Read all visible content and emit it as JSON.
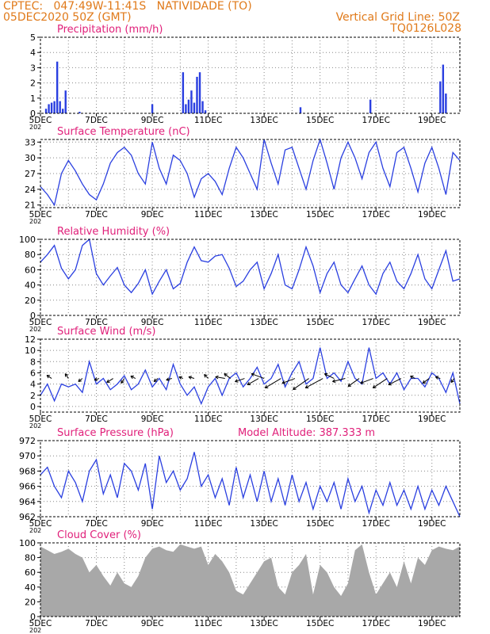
{
  "header": {
    "line1": "CPTEC:   047:49W-11:41S   NATIVIDADE (TO)",
    "line2": "05DEC2020 50Z (GMT)",
    "grid_note": "Vertical Grid Line: 50Z",
    "code": "TQ0126L028",
    "model_altitude": "Model Altitude: 387.333 m"
  },
  "colors": {
    "header": "#e07a1a",
    "title": "#e0207a",
    "line": "#2a3fe0",
    "bar": "#2a3fe0",
    "cloud": "#a8a8a8",
    "grid": "#888888"
  },
  "x_axis": {
    "start": "05DEC",
    "end": "20DEC",
    "ticks": [
      {
        "pos": 0,
        "label": "5DEC"
      },
      {
        "pos": 2,
        "label": "7DEC"
      },
      {
        "pos": 4,
        "label": "9DEC"
      },
      {
        "pos": 6,
        "label": "11DEC"
      },
      {
        "pos": 8,
        "label": "13DEC"
      },
      {
        "pos": 10,
        "label": "15DEC"
      },
      {
        "pos": 12,
        "label": "17DEC"
      },
      {
        "pos": 14,
        "label": "19DEC"
      }
    ],
    "partial_label": "202"
  },
  "chart_data": [
    {
      "id": "precip",
      "type": "bar",
      "title": "Precipitation (mm/h)",
      "ylim": [
        0,
        5
      ],
      "yticks": [
        0,
        1,
        2,
        3,
        4,
        5
      ],
      "x": [
        0.2,
        0.3,
        0.4,
        0.5,
        0.6,
        0.7,
        0.8,
        0.9,
        1.4,
        4.0,
        5.1,
        5.2,
        5.3,
        5.4,
        5.5,
        5.6,
        5.7,
        5.8,
        5.9,
        9.3,
        11.8,
        14.3,
        14.4,
        14.5
      ],
      "values": [
        0.3,
        0.6,
        0.7,
        0.8,
        3.4,
        0.8,
        0.3,
        1.5,
        0.1,
        0.6,
        2.7,
        0.6,
        0.9,
        1.5,
        0.7,
        2.4,
        2.7,
        0.8,
        0.2,
        0.4,
        0.9,
        2.1,
        3.2,
        1.3
      ]
    },
    {
      "id": "temp",
      "type": "line",
      "title": "Surface Temperature (nC)",
      "ylim": [
        20.5,
        33.5
      ],
      "yticks": [
        21,
        24,
        27,
        30,
        33
      ],
      "x": [
        0,
        0.25,
        0.5,
        0.75,
        1,
        1.25,
        1.5,
        1.75,
        2,
        2.25,
        2.5,
        2.75,
        3,
        3.25,
        3.5,
        3.75,
        4,
        4.25,
        4.5,
        4.75,
        5,
        5.25,
        5.5,
        5.75,
        6,
        6.25,
        6.5,
        6.75,
        7,
        7.25,
        7.5,
        7.75,
        8,
        8.25,
        8.5,
        8.75,
        9,
        9.25,
        9.5,
        9.75,
        10,
        10.25,
        10.5,
        10.75,
        11,
        11.25,
        11.5,
        11.75,
        12,
        12.25,
        12.5,
        12.75,
        13,
        13.25,
        13.5,
        13.75,
        14,
        14.25,
        14.5,
        14.75,
        15
      ],
      "values": [
        24.5,
        23,
        21,
        27,
        29.5,
        27.5,
        25,
        23,
        22,
        25,
        29,
        31,
        32,
        30.5,
        27,
        25,
        33,
        28,
        25,
        30.5,
        29.5,
        27,
        22.5,
        26,
        27,
        25.5,
        23,
        28,
        32,
        30,
        27,
        24,
        33.5,
        29,
        25,
        31.5,
        32,
        28,
        24,
        29.5,
        33.5,
        29,
        24,
        30,
        33,
        30,
        26,
        31,
        33,
        28,
        24.5,
        31,
        32,
        28,
        23.5,
        29,
        32,
        28,
        23,
        31,
        29.5
      ]
    },
    {
      "id": "rh",
      "type": "line",
      "title": "Relative Humidity (%)",
      "ylim": [
        0,
        100
      ],
      "yticks": [
        0,
        20,
        40,
        60,
        80,
        100
      ],
      "x": [
        0,
        0.25,
        0.5,
        0.75,
        1,
        1.25,
        1.5,
        1.75,
        2,
        2.25,
        2.5,
        2.75,
        3,
        3.25,
        3.5,
        3.75,
        4,
        4.25,
        4.5,
        4.75,
        5,
        5.25,
        5.5,
        5.75,
        6,
        6.25,
        6.5,
        6.75,
        7,
        7.25,
        7.5,
        7.75,
        8,
        8.25,
        8.5,
        8.75,
        9,
        9.25,
        9.5,
        9.75,
        10,
        10.25,
        10.5,
        10.75,
        11,
        11.25,
        11.5,
        11.75,
        12,
        12.25,
        12.5,
        12.75,
        13,
        13.25,
        13.5,
        13.75,
        14,
        14.25,
        14.5,
        14.75,
        15
      ],
      "values": [
        70,
        80,
        92,
        62,
        48,
        60,
        92,
        100,
        55,
        40,
        52,
        63,
        40,
        30,
        42,
        60,
        28,
        45,
        60,
        35,
        42,
        70,
        90,
        72,
        70,
        78,
        80,
        62,
        38,
        45,
        60,
        70,
        35,
        55,
        80,
        40,
        35,
        60,
        90,
        65,
        30,
        55,
        70,
        40,
        30,
        48,
        65,
        40,
        28,
        55,
        70,
        45,
        35,
        55,
        80,
        48,
        35,
        60,
        85,
        45,
        48
      ]
    },
    {
      "id": "wind",
      "type": "line",
      "title": "Surface Wind (m/s)",
      "ylim": [
        -1,
        12
      ],
      "yticks": [
        0,
        2,
        4,
        6,
        8,
        10,
        12
      ],
      "x": [
        0,
        0.25,
        0.5,
        0.75,
        1,
        1.25,
        1.5,
        1.75,
        2,
        2.25,
        2.5,
        2.75,
        3,
        3.25,
        3.5,
        3.75,
        4,
        4.25,
        4.5,
        4.75,
        5,
        5.25,
        5.5,
        5.75,
        6,
        6.25,
        6.5,
        6.75,
        7,
        7.25,
        7.5,
        7.75,
        8,
        8.25,
        8.5,
        8.75,
        9,
        9.25,
        9.5,
        9.75,
        10,
        10.25,
        10.5,
        10.75,
        11,
        11.25,
        11.5,
        11.75,
        12,
        12.25,
        12.5,
        12.75,
        13,
        13.25,
        13.5,
        13.75,
        14,
        14.25,
        14.5,
        14.75,
        15
      ],
      "values": [
        2,
        4,
        1,
        4,
        3.5,
        4,
        2.5,
        8,
        4,
        5,
        3,
        4,
        5.5,
        3,
        4,
        6.5,
        3.5,
        5,
        3,
        7.5,
        4,
        2,
        3.5,
        0.5,
        3.5,
        5,
        2,
        5,
        6,
        3.5,
        5,
        7,
        4,
        5,
        7.5,
        3.5,
        6,
        8,
        4,
        5,
        10.5,
        5,
        6,
        4.5,
        8,
        5,
        4,
        10.5,
        5,
        6,
        4,
        6,
        3,
        5,
        5,
        3.5,
        6,
        5,
        2.5,
        6,
        0.5
      ],
      "arrows": [
        {
          "x": 0.4,
          "dx": -6,
          "dy": -4
        },
        {
          "x": 1.0,
          "dx": -4,
          "dy": -6
        },
        {
          "x": 1.5,
          "dx": -5,
          "dy": 4
        },
        {
          "x": 2.1,
          "dx": -6,
          "dy": 2
        },
        {
          "x": 2.6,
          "dx": -8,
          "dy": 5
        },
        {
          "x": 3.0,
          "dx": -4,
          "dy": 6
        },
        {
          "x": 3.4,
          "dx": -6,
          "dy": -3
        },
        {
          "x": 4.2,
          "dx": -5,
          "dy": 4
        },
        {
          "x": 4.7,
          "dx": -7,
          "dy": 2
        },
        {
          "x": 5.1,
          "dx": -5,
          "dy": -2
        },
        {
          "x": 5.5,
          "dx": -7,
          "dy": -2
        },
        {
          "x": 6.0,
          "dx": -5,
          "dy": -5
        },
        {
          "x": 6.6,
          "dx": -12,
          "dy": -2
        },
        {
          "x": 6.8,
          "dx": -8,
          "dy": -6
        },
        {
          "x": 7.3,
          "dx": -12,
          "dy": 4
        },
        {
          "x": 7.8,
          "dx": -14,
          "dy": 8
        },
        {
          "x": 8.0,
          "dx": -16,
          "dy": -6
        },
        {
          "x": 8.6,
          "dx": -20,
          "dy": 12
        },
        {
          "x": 9.1,
          "dx": -16,
          "dy": 6
        },
        {
          "x": 9.6,
          "dx": -20,
          "dy": 14
        },
        {
          "x": 10.1,
          "dx": -22,
          "dy": 12
        },
        {
          "x": 10.5,
          "dx": -12,
          "dy": -6
        },
        {
          "x": 10.9,
          "dx": -16,
          "dy": 4
        },
        {
          "x": 11.4,
          "dx": -14,
          "dy": 10
        },
        {
          "x": 11.9,
          "dx": -16,
          "dy": 6
        },
        {
          "x": 12.4,
          "dx": -18,
          "dy": 12
        },
        {
          "x": 12.9,
          "dx": -16,
          "dy": 8
        },
        {
          "x": 13.4,
          "dx": -6,
          "dy": -3
        },
        {
          "x": 13.9,
          "dx": -8,
          "dy": 6
        },
        {
          "x": 14.3,
          "dx": -6,
          "dy": -2
        },
        {
          "x": 14.8,
          "dx": -4,
          "dy": 5
        }
      ]
    },
    {
      "id": "pres",
      "type": "line",
      "title": "Surface Pressure (hPa)",
      "ylim": [
        962,
        972
      ],
      "yticks": [
        962,
        964,
        966,
        968,
        970,
        972
      ],
      "x": [
        0,
        0.25,
        0.5,
        0.75,
        1,
        1.25,
        1.5,
        1.75,
        2,
        2.25,
        2.5,
        2.75,
        3,
        3.25,
        3.5,
        3.75,
        4,
        4.25,
        4.5,
        4.75,
        5,
        5.25,
        5.5,
        5.75,
        6,
        6.25,
        6.5,
        6.75,
        7,
        7.25,
        7.5,
        7.75,
        8,
        8.25,
        8.5,
        8.75,
        9,
        9.25,
        9.5,
        9.75,
        10,
        10.25,
        10.5,
        10.75,
        11,
        11.25,
        11.5,
        11.75,
        12,
        12.25,
        12.5,
        12.75,
        13,
        13.25,
        13.5,
        13.75,
        14,
        14.25,
        14.5,
        14.75,
        15
      ],
      "values": [
        967.5,
        968.5,
        966,
        964.5,
        968,
        966.5,
        964,
        968,
        969.5,
        965,
        967.5,
        964.5,
        969,
        968,
        965.5,
        969,
        963,
        970,
        966.5,
        968,
        965.5,
        967,
        970.5,
        966,
        967.5,
        964.5,
        967,
        963.5,
        968.5,
        964.5,
        967.5,
        964,
        968,
        964,
        967,
        963.5,
        967.5,
        964,
        966.5,
        963,
        966,
        964,
        966.5,
        963,
        967,
        964,
        966,
        962.5,
        965.5,
        963.5,
        966.5,
        963.5,
        965.5,
        963,
        966,
        963,
        965.5,
        963.5,
        966,
        964,
        962
      ]
    },
    {
      "id": "cloud",
      "type": "area",
      "title": "Cloud Cover (%)",
      "ylim": [
        0,
        100
      ],
      "yticks": [
        0,
        20,
        40,
        60,
        80,
        100
      ],
      "x": [
        0,
        0.25,
        0.5,
        0.75,
        1,
        1.25,
        1.5,
        1.75,
        2,
        2.25,
        2.5,
        2.75,
        3,
        3.25,
        3.5,
        3.75,
        4,
        4.25,
        4.5,
        4.75,
        5,
        5.25,
        5.5,
        5.75,
        6,
        6.25,
        6.5,
        6.75,
        7,
        7.25,
        7.5,
        7.75,
        8,
        8.25,
        8.5,
        8.75,
        9,
        9.25,
        9.5,
        9.75,
        10,
        10.25,
        10.5,
        10.75,
        11,
        11.25,
        11.5,
        11.75,
        12,
        12.25,
        12.5,
        12.75,
        13,
        13.25,
        13.5,
        13.75,
        14,
        14.25,
        14.5,
        14.75,
        15
      ],
      "values": [
        95,
        90,
        85,
        88,
        92,
        85,
        80,
        60,
        70,
        55,
        42,
        60,
        45,
        40,
        55,
        80,
        92,
        95,
        90,
        88,
        98,
        95,
        92,
        95,
        70,
        85,
        75,
        60,
        35,
        30,
        45,
        60,
        75,
        80,
        40,
        30,
        60,
        70,
        85,
        30,
        70,
        60,
        40,
        28,
        45,
        90,
        98,
        60,
        30,
        45,
        60,
        40,
        75,
        45,
        80,
        70,
        90,
        95,
        92,
        90,
        95
      ]
    }
  ]
}
